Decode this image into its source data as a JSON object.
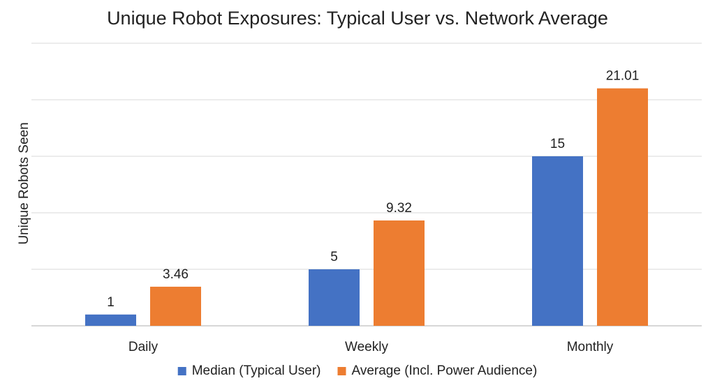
{
  "chart_data": {
    "type": "bar",
    "title": "Unique Robot Exposures: Typical User vs. Network Average",
    "xlabel": "",
    "ylabel": "Unique Robots Seen",
    "categories": [
      "Daily",
      "Weekly",
      "Monthly"
    ],
    "series": [
      {
        "name": "Median (Typical User)",
        "values": [
          1,
          5,
          15
        ],
        "labels": [
          "1",
          "5",
          "15"
        ],
        "color": "#4472C4"
      },
      {
        "name": "Average (Incl. Power Audience)",
        "values": [
          3.46,
          9.32,
          21.01
        ],
        "labels": [
          "3.46",
          "9.32",
          "21.01"
        ],
        "color": "#ED7D31"
      }
    ],
    "ylim": [
      0,
      25
    ],
    "grid": true,
    "legend": "bottom"
  }
}
